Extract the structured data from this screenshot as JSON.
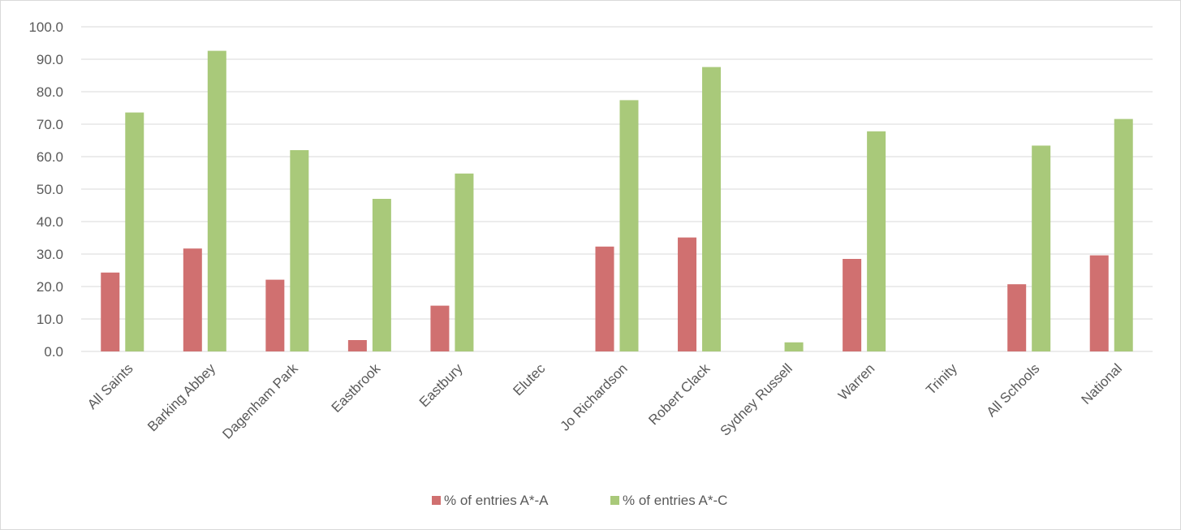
{
  "chart_data": {
    "type": "bar",
    "title": "",
    "xlabel": "",
    "ylabel": "",
    "ylim": [
      0,
      100
    ],
    "yticks": [
      "0.0",
      "10.0",
      "20.0",
      "30.0",
      "40.0",
      "50.0",
      "60.0",
      "70.0",
      "80.0",
      "90.0",
      "100.0"
    ],
    "grid": true,
    "legend_position": "bottom",
    "categories": [
      "All Saints",
      "Barking Abbey",
      "Dagenham Park",
      "Eastbrook",
      "Eastbury",
      "Elutec",
      "Jo Richardson",
      "Robert Clack",
      "Sydney Russell",
      "Warren",
      "Trinity",
      "All Schools",
      "National"
    ],
    "series": [
      {
        "name": "% of entries A*-A",
        "color": "#D07070",
        "values": [
          24.3,
          31.7,
          22.1,
          3.5,
          14.1,
          0,
          32.3,
          35.1,
          0,
          28.5,
          0,
          20.7,
          29.6
        ]
      },
      {
        "name": "% of entries A*-C",
        "color": "#A9C97A",
        "values": [
          73.6,
          92.6,
          62.0,
          47.0,
          54.8,
          0,
          77.4,
          87.6,
          2.8,
          67.8,
          0,
          63.4,
          71.6
        ]
      }
    ]
  }
}
